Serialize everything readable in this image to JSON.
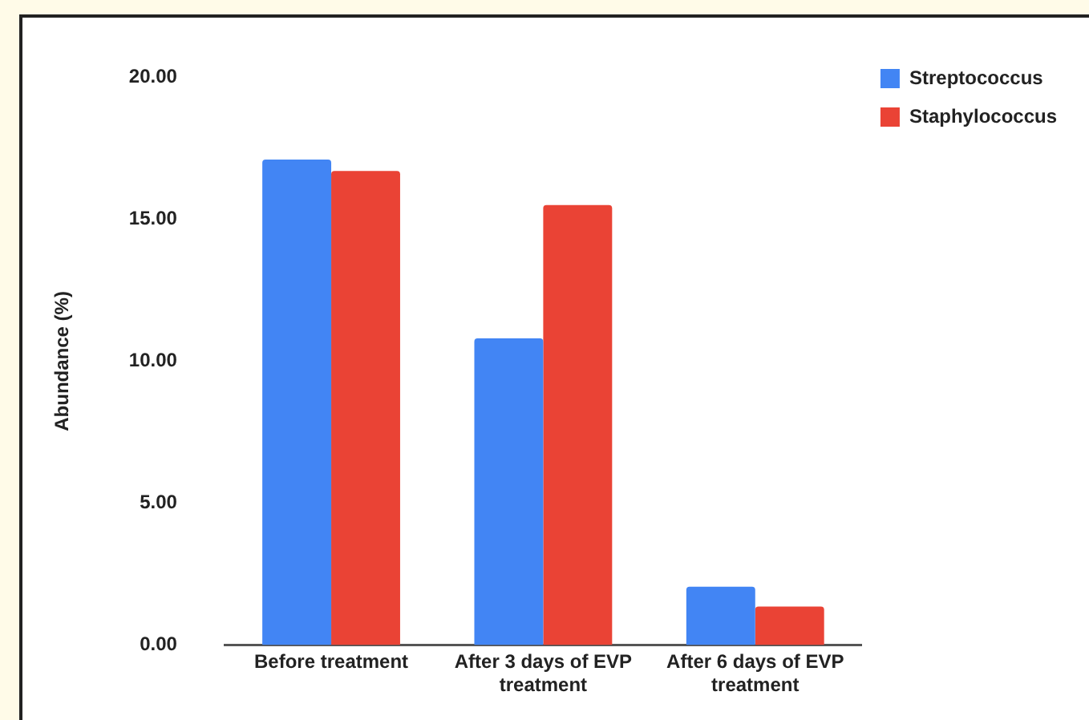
{
  "chart_data": {
    "type": "bar",
    "ylabel": "Abundance (%)",
    "categories": [
      "Before treatment",
      "After 3 days of EVP treatment",
      "After 6 days of EVP treatment"
    ],
    "series": [
      {
        "name": "Streptococcus",
        "color": "#4285f4",
        "values": [
          17.1,
          10.8,
          2.05
        ]
      },
      {
        "name": "Staphylococcus",
        "color": "#ea4335",
        "values": [
          16.7,
          15.5,
          1.35
        ]
      }
    ],
    "ylim": [
      0,
      20
    ],
    "yticks": [
      {
        "value": 0,
        "label": "0.00"
      },
      {
        "value": 5,
        "label": "5.00"
      },
      {
        "value": 10,
        "label": "10.00"
      },
      {
        "value": 15,
        "label": "15.00"
      },
      {
        "value": 20,
        "label": "20.00"
      }
    ],
    "grid": false,
    "legend": "top right"
  }
}
